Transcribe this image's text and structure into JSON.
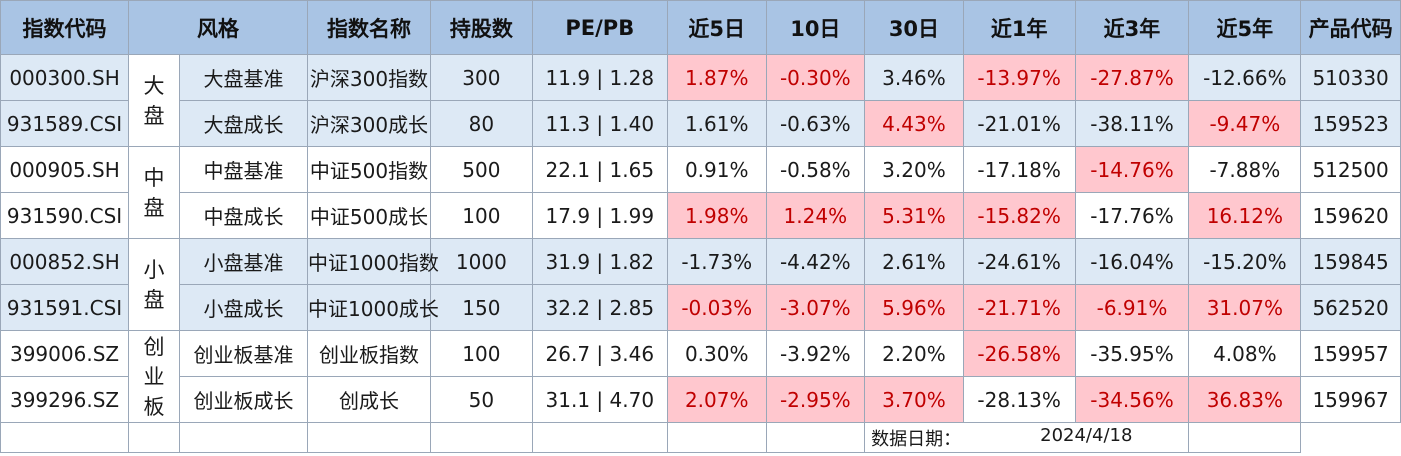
{
  "colors": {
    "header_bg": "#a9c4e4",
    "band_bg": "#dde9f5",
    "highlight_bg": "#ffc7ce",
    "highlight_text": "#c00000"
  },
  "headers": [
    "指数代码",
    "风格",
    "指数名称",
    "持股数",
    "PE/PB",
    "近5日",
    "10日",
    "30日",
    "近1年",
    "近3年",
    "近5年",
    "产品代码"
  ],
  "styles": [
    "大\n盘",
    "中\n盘",
    "小\n盘",
    "创\n业\n板"
  ],
  "rows": [
    {
      "code": "000300.SH",
      "style": "大盘基准",
      "name": "沪深300指数",
      "holdings": "300",
      "pepb": "11.9 | 1.28",
      "d5": "1.87%",
      "d10": "-0.30%",
      "d30": "3.46%",
      "y1": "-13.97%",
      "y3": "-27.87%",
      "y5": "-12.66%",
      "product": "510330"
    },
    {
      "code": "931589.CSI",
      "style": "大盘成长",
      "name": "沪深300成长",
      "holdings": "80",
      "pepb": "11.3 | 1.40",
      "d5": "1.61%",
      "d10": "-0.63%",
      "d30": "4.43%",
      "y1": "-21.01%",
      "y3": "-38.11%",
      "y5": "-9.47%",
      "product": "159523"
    },
    {
      "code": "000905.SH",
      "style": "中盘基准",
      "name": "中证500指数",
      "holdings": "500",
      "pepb": "22.1 | 1.65",
      "d5": "0.91%",
      "d10": "-0.58%",
      "d30": "3.20%",
      "y1": "-17.18%",
      "y3": "-14.76%",
      "y5": "-7.88%",
      "product": "512500"
    },
    {
      "code": "931590.CSI",
      "style": "中盘成长",
      "name": "中证500成长",
      "holdings": "100",
      "pepb": "17.9 | 1.99",
      "d5": "1.98%",
      "d10": "1.24%",
      "d30": "5.31%",
      "y1": "-15.82%",
      "y3": "-17.76%",
      "y5": "16.12%",
      "product": "159620"
    },
    {
      "code": "000852.SH",
      "style": "小盘基准",
      "name": "中证1000指数",
      "holdings": "1000",
      "pepb": "31.9 | 1.82",
      "d5": "-1.73%",
      "d10": "-4.42%",
      "d30": "2.61%",
      "y1": "-24.61%",
      "y3": "-16.04%",
      "y5": "-15.20%",
      "product": "159845"
    },
    {
      "code": "931591.CSI",
      "style": "小盘成长",
      "name": "中证1000成长",
      "holdings": "150",
      "pepb": "32.2 | 2.85",
      "d5": "-0.03%",
      "d10": "-3.07%",
      "d30": "5.96%",
      "y1": "-21.71%",
      "y3": "-6.91%",
      "y5": "31.07%",
      "product": "562520"
    },
    {
      "code": "399006.SZ",
      "style": "创业板基准",
      "name": "创业板指数",
      "holdings": "100",
      "pepb": "26.7 | 3.46",
      "d5": "0.30%",
      "d10": "-3.92%",
      "d30": "2.20%",
      "y1": "-26.58%",
      "y3": "-35.95%",
      "y5": "4.08%",
      "product": "159957"
    },
    {
      "code": "399296.SZ",
      "style": "创业板成长",
      "name": "创成长",
      "holdings": "50",
      "pepb": "31.1 | 4.70",
      "d5": "2.07%",
      "d10": "-2.95%",
      "d30": "3.70%",
      "y1": "-28.13%",
      "y3": "-34.56%",
      "y5": "36.83%",
      "product": "159967"
    }
  ],
  "footer": {
    "date_label": "数据日期：",
    "date_value": "2024/4/18"
  }
}
